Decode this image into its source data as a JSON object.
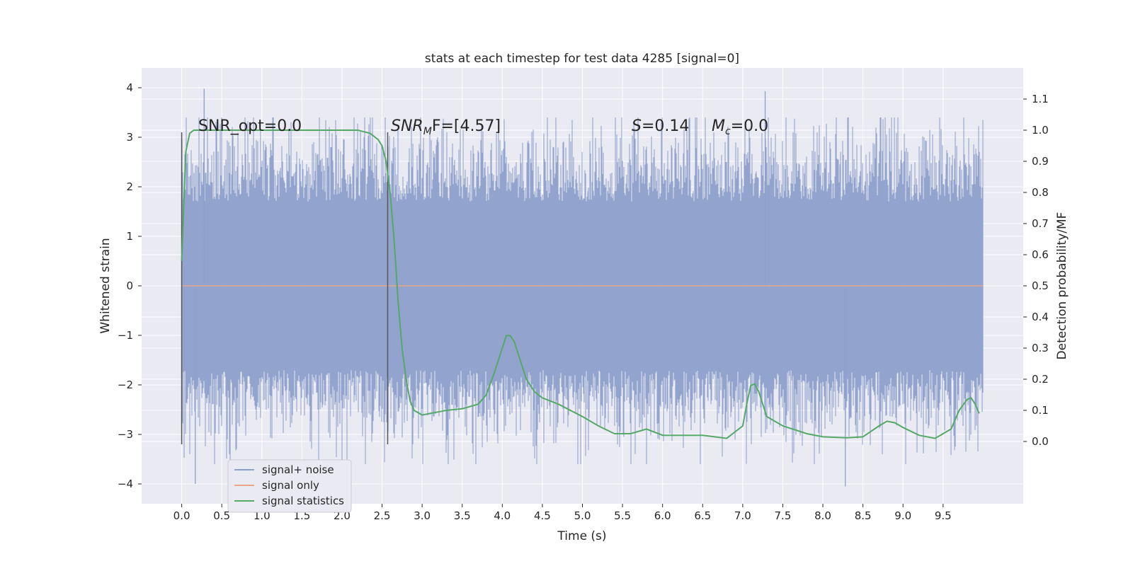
{
  "chart_data": {
    "type": "line",
    "title": "stats at each timestep for test data 4285 [signal=0]",
    "xlabel": "Time (s)",
    "ylabel": "Whitened strain",
    "ylabel_right": "Detection probability/MF",
    "xlim": [
      -0.5,
      10.5
    ],
    "ylim": [
      -4.4,
      4.4
    ],
    "ylim_right": [
      -0.2,
      1.2
    ],
    "x_ticks": [
      "0.0",
      "0.5",
      "1.0",
      "1.5",
      "2.0",
      "2.5",
      "3.0",
      "3.5",
      "4.0",
      "4.5",
      "5.0",
      "5.5",
      "6.0",
      "6.5",
      "7.0",
      "7.5",
      "8.0",
      "8.5",
      "9.0",
      "9.5"
    ],
    "y_ticks": [
      "4",
      "3",
      "2",
      "1",
      "0",
      "−1",
      "−2",
      "−3",
      "−4"
    ],
    "y_ticks_right": [
      "1.1",
      "1.0",
      "0.9",
      "0.8",
      "0.7",
      "0.6",
      "0.5",
      "0.4",
      "0.3",
      "0.2",
      "0.1",
      "0.0"
    ],
    "grid": true,
    "legend_position": "lower-left",
    "legend": [
      "signal+ noise",
      "signal only",
      "signal statistics"
    ],
    "colors": {
      "noise": "#8da0cb",
      "signal": "#e8a58a",
      "stats": "#55a868",
      "background": "#eaeaf2",
      "grid": "#ffffff",
      "vline": "#555555"
    },
    "annotations": {
      "snr_opt": "SNR_opt=0.0",
      "snr_mf_main": "SNR",
      "snr_mf_sub": "M",
      "snr_mf_rest": "F=[4.57]",
      "s_label": "S",
      "s_value": "=0.14",
      "mc_label": "M",
      "mc_sub": "c",
      "mc_value": "=0.0"
    },
    "vertical_lines_x": [
      0.0,
      2.57
    ],
    "vertical_lines_y_range": [
      3.1,
      -3.2
    ],
    "noise_x_range": [
      0.0,
      10.0
    ],
    "noise_amplitude_typical": 2.0,
    "noise_extremes": [
      [
        0.28,
        3.98
      ],
      [
        0.17,
        -4.0
      ],
      [
        7.28,
        3.93
      ],
      [
        8.28,
        -4.05
      ]
    ],
    "signal_only": {
      "x": [
        0.0,
        10.0
      ],
      "y": [
        0.0,
        0.0
      ]
    },
    "signal_statistics": {
      "x": [
        0.0,
        0.05,
        0.1,
        0.15,
        0.2,
        0.3,
        0.5,
        1.0,
        1.5,
        2.0,
        2.2,
        2.35,
        2.45,
        2.5,
        2.55,
        2.6,
        2.65,
        2.7,
        2.75,
        2.8,
        2.85,
        2.9,
        3.0,
        3.1,
        3.2,
        3.3,
        3.5,
        3.7,
        3.8,
        3.9,
        4.0,
        4.05,
        4.1,
        4.15,
        4.2,
        4.3,
        4.4,
        4.5,
        4.7,
        5.0,
        5.2,
        5.4,
        5.6,
        5.8,
        6.0,
        6.2,
        6.5,
        6.8,
        7.0,
        7.05,
        7.1,
        7.15,
        7.2,
        7.3,
        7.5,
        7.8,
        8.0,
        8.3,
        8.5,
        8.7,
        8.8,
        8.9,
        9.0,
        9.2,
        9.4,
        9.6,
        9.7,
        9.8,
        9.85,
        9.9,
        9.95
      ],
      "y": [
        0.58,
        0.93,
        0.99,
        1.0,
        1.0,
        1.0,
        1.0,
        1.0,
        1.0,
        1.0,
        1.0,
        0.99,
        0.97,
        0.95,
        0.9,
        0.8,
        0.65,
        0.45,
        0.3,
        0.2,
        0.13,
        0.1,
        0.085,
        0.09,
        0.095,
        0.1,
        0.105,
        0.12,
        0.15,
        0.22,
        0.3,
        0.34,
        0.34,
        0.32,
        0.28,
        0.2,
        0.16,
        0.14,
        0.12,
        0.08,
        0.05,
        0.025,
        0.025,
        0.04,
        0.02,
        0.02,
        0.02,
        0.01,
        0.05,
        0.12,
        0.18,
        0.185,
        0.16,
        0.08,
        0.05,
        0.025,
        0.015,
        0.012,
        0.015,
        0.05,
        0.065,
        0.06,
        0.045,
        0.02,
        0.01,
        0.04,
        0.1,
        0.135,
        0.14,
        0.12,
        0.09
      ]
    }
  }
}
